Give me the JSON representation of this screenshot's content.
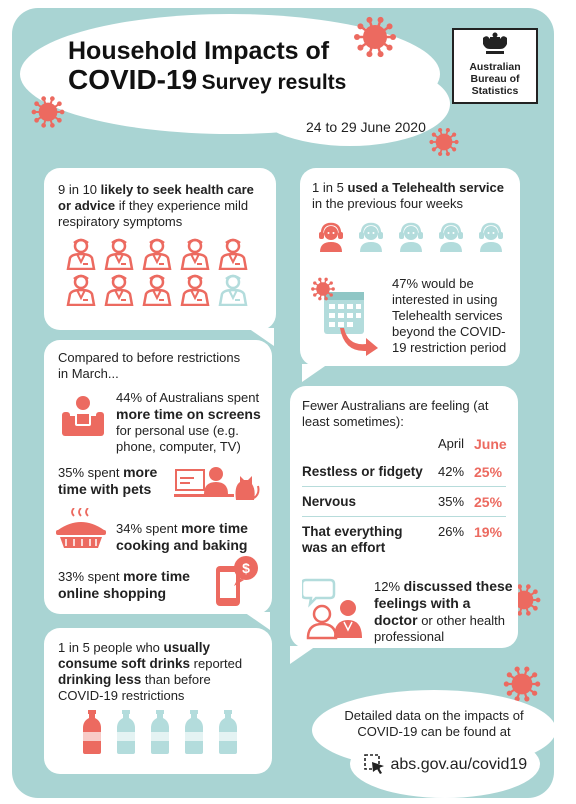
{
  "header": {
    "title_line1": "Household Impacts of",
    "title_line2_big": "COVID-19",
    "title_line2_small": "Survey results",
    "date": "24 to 29 June 2020",
    "logo": {
      "line1": "Australian",
      "line2": "Bureau of",
      "line3": "Statistics"
    }
  },
  "healthcare": {
    "lead": "9 in 10",
    "bold": "likely to seek health care or advice",
    "rest": "if they experience mild respiratory symptoms",
    "icons_total": 10,
    "icons_highlighted": 9
  },
  "telehealth": {
    "lead": "1 in 5",
    "bold": "used a Telehealth service",
    "rest": "in the previous four weeks",
    "icons_total": 5,
    "icons_highlighted": 1,
    "interest_text": "47% would be interested in using Telehealth services beyond the COVID-19 restriction period"
  },
  "restrictions": {
    "intro": "Compared to before restrictions in March...",
    "screens_pre": "44% of Australians spent",
    "screens_bold": "more time on screens",
    "screens_post": "for personal use (e.g. phone, computer, TV)",
    "pets_pre": "35% spent",
    "pets_bold": "more time with pets",
    "cooking_pre": "34% spent",
    "cooking_bold": "more time cooking and baking",
    "shopping_pre": "33% spent",
    "shopping_bold": "more time online shopping"
  },
  "feelings": {
    "intro": "Fewer Australians are feeling (at least sometimes):",
    "col_april": "April",
    "col_june": "June",
    "rows": [
      {
        "label": "Restless or fidgety",
        "april": "42%",
        "june": "25%"
      },
      {
        "label": "Nervous",
        "april": "35%",
        "june": "25%"
      },
      {
        "label": "That everything was an effort",
        "april": "26%",
        "june": "19%"
      }
    ],
    "discuss_pre": "12%",
    "discuss_bold": "discussed these feelings with a doctor",
    "discuss_post": "or other health professional"
  },
  "drinks": {
    "pre": "1 in 5 people who",
    "bold1": "usually consume soft drinks",
    "mid": "reported",
    "bold2": "drinking less",
    "post": "than before COVID-19 restrictions",
    "icons_total": 5,
    "icons_highlighted": 1
  },
  "footer": {
    "text": "Detailed data on the impacts of COVID-19 can be found at",
    "link": "abs.gov.au/covid19"
  },
  "colors": {
    "background": "#a9d4d3",
    "accent": "#ec6a60",
    "light_icon": "#b3dcdc",
    "text": "#222222"
  }
}
